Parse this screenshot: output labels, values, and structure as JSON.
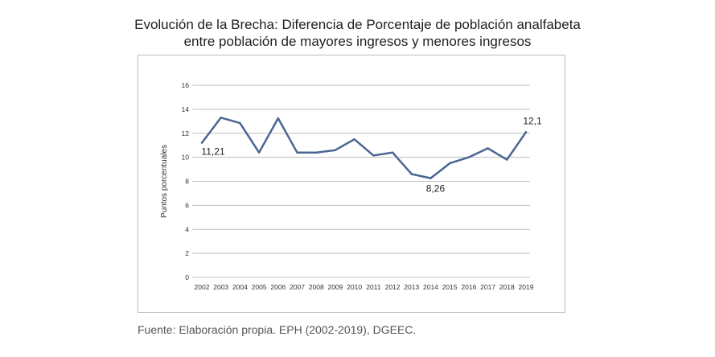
{
  "title_lines": [
    "Evolución de la Brecha: Diferencia de Porcentaje de población analfabeta",
    "entre población de mayores ingresos y menores ingresos"
  ],
  "source": "Fuente: Elaboración propia. EPH (2002-2019), DGEEC.",
  "chart_data": {
    "type": "line",
    "title": "Evolución de la Brecha: Diferencia de Porcentaje de población analfabeta entre población de mayores ingresos y menores ingresos",
    "xlabel": "",
    "ylabel": "Puntos porcentuales",
    "ylim": [
      0,
      16
    ],
    "yticks": [
      0,
      2,
      4,
      6,
      8,
      10,
      12,
      14,
      16
    ],
    "grid": true,
    "legend": "none",
    "color": "#4a6594",
    "x": [
      "2002",
      "2003",
      "2004",
      "2005",
      "2006",
      "2007",
      "2008",
      "2009",
      "2010",
      "2011",
      "2012",
      "2013",
      "2014",
      "2015",
      "2016",
      "2017",
      "2018",
      "2019"
    ],
    "values": [
      11.21,
      13.3,
      12.85,
      10.4,
      13.25,
      10.4,
      10.4,
      10.6,
      11.5,
      10.15,
      10.4,
      8.6,
      8.26,
      9.5,
      10.0,
      10.75,
      9.8,
      12.1
    ],
    "annotations": [
      {
        "label": "11,21",
        "index": 0
      },
      {
        "label": "8,26",
        "index": 12
      },
      {
        "label": "12,1",
        "index": 17
      }
    ]
  }
}
